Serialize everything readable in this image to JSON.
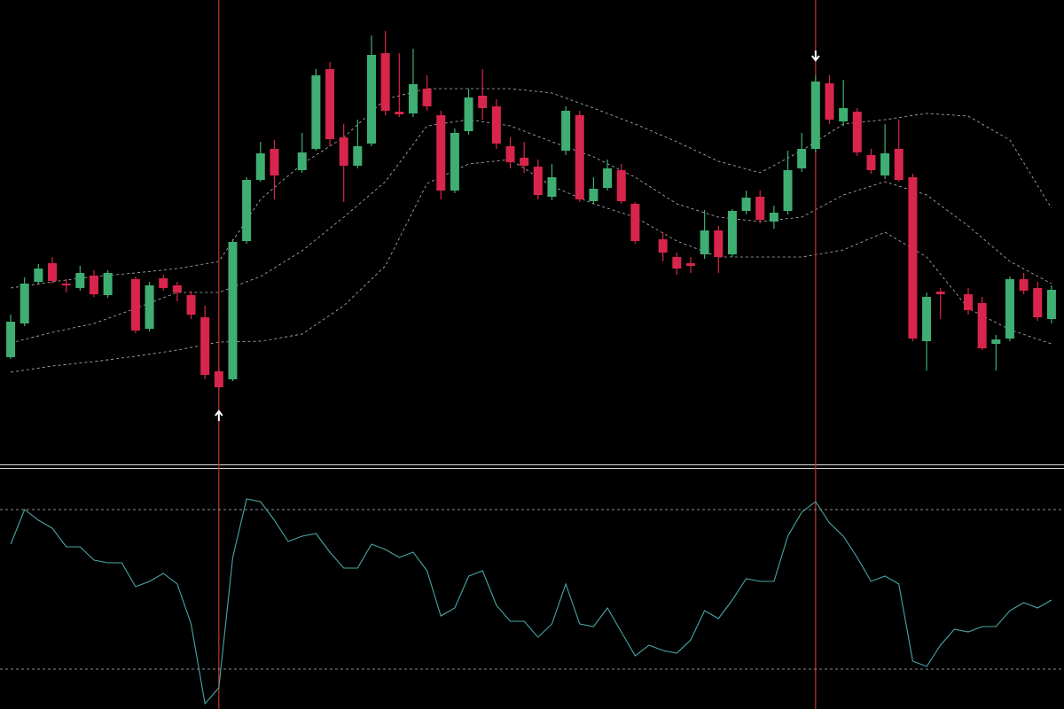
{
  "chart_data": [
    {
      "type": "candlestick",
      "up_color": "#3fae72",
      "down_color": "#d8254c",
      "xlim": [
        -0.77,
        75.9
      ],
      "ylim": [
        0,
        520
      ],
      "x": [
        0,
        1,
        2,
        3,
        4,
        5,
        6,
        7,
        8,
        9,
        10,
        11,
        12,
        13,
        14,
        15,
        16,
        17,
        18,
        19,
        20,
        21,
        22,
        23,
        24,
        25,
        26,
        27,
        28,
        29,
        30,
        31,
        32,
        33,
        34,
        35,
        36,
        37,
        38,
        39,
        40,
        41,
        42,
        43,
        44,
        45,
        46,
        47,
        48,
        49,
        50,
        51,
        52,
        53,
        54,
        55,
        56,
        57,
        58,
        59,
        60,
        61,
        62,
        63,
        64,
        65,
        66,
        67,
        68,
        69,
        70,
        71,
        72,
        73,
        74,
        75
      ],
      "open": [
        117,
        155,
        202,
        223,
        200,
        195,
        209,
        187,
        null,
        205,
        149,
        206,
        198,
        187,
        162,
        101,
        92,
        248,
        317,
        352,
        null,
        328,
        352,
        442,
        365,
        333,
        358,
        460,
        394,
        392,
        420,
        390,
        305,
        372,
        412,
        400,
        355,
        342,
        332,
        298,
        350,
        390,
        293,
        308,
        328,
        290,
        null,
        250,
        230,
        223,
        233,
        260,
        233,
        282,
        298,
        270,
        282,
        330,
        352,
        426,
        383,
        394,
        345,
        322,
        352,
        320,
        135,
        191,
        null,
        188,
        178,
        132,
        138,
        205,
        195,
        160
      ],
      "high": [
        165,
        207,
        222,
        230,
        205,
        220,
        215,
        215,
        null,
        208,
        202,
        210,
        202,
        192,
        175,
        105,
        250,
        320,
        360,
        362,
        null,
        370,
        442,
        450,
        380,
        385,
        480,
        485,
        460,
        465,
        435,
        395,
        375,
        420,
        442,
        408,
        365,
        360,
        340,
        335,
        400,
        395,
        320,
        340,
        335,
        292,
        null,
        258,
        235,
        230,
        283,
        265,
        284,
        305,
        305,
        288,
        350,
        370,
        435,
        435,
        430,
        398,
        352,
        380,
        385,
        324,
        190,
        195,
        null,
        195,
        185,
        142,
        208,
        212,
        202,
        198
      ],
      "low": [
        115,
        152,
        200,
        200,
        190,
        192,
        185,
        184,
        null,
        144,
        146,
        192,
        180,
        160,
        92,
        80,
        90,
        245,
        315,
        295,
        null,
        325,
        350,
        355,
        292,
        330,
        355,
        390,
        388,
        388,
        395,
        295,
        302,
        368,
        385,
        352,
        330,
        325,
        295,
        294,
        345,
        292,
        290,
        305,
        290,
        245,
        null,
        225,
        210,
        212,
        228,
        212,
        230,
        278,
        268,
        262,
        278,
        326,
        348,
        380,
        378,
        344,
        324,
        318,
        315,
        135,
        102,
        160,
        null,
        165,
        125,
        102,
        135,
        188,
        158,
        155
      ],
      "close": [
        157,
        200,
        217,
        203,
        198,
        212,
        188,
        212,
        null,
        147,
        198,
        195,
        190,
        165,
        97,
        83,
        247,
        317,
        347,
        322,
        null,
        348,
        435,
        363,
        333,
        355,
        458,
        395,
        391,
        425,
        400,
        305,
        370,
        410,
        398,
        358,
        337,
        333,
        300,
        320,
        395,
        295,
        307,
        330,
        293,
        248,
        null,
        235,
        217,
        220,
        260,
        230,
        282,
        297,
        272,
        280,
        328,
        352,
        428,
        385,
        398,
        348,
        328,
        347,
        317,
        138,
        185,
        188,
        null,
        170,
        127,
        137,
        205,
        192,
        162,
        193
      ],
      "bands": {
        "color": "#b8b8b8",
        "x": [
          0,
          3,
          6,
          9,
          12,
          15,
          18,
          21,
          24,
          27,
          30,
          33,
          36,
          39,
          42,
          45,
          48,
          51,
          54,
          57,
          60,
          63,
          66,
          69,
          72,
          75
        ],
        "series": [
          {
            "values": [
              195,
              202,
              208,
              212,
              217,
              225,
              295,
              335,
              365,
              408,
              420,
              420,
              420,
              415,
              398,
              380,
              360,
              338,
              325,
              350,
              380,
              385,
              392,
              389,
              362,
              285
            ]
          },
          {
            "values": [
              133,
              145,
              155,
              172,
              190,
              190,
              208,
              237,
              275,
              315,
              378,
              385,
              378,
              360,
              343,
              320,
              290,
              275,
              270,
              275,
              300,
              315,
              300,
              265,
              225,
              200
            ]
          },
          {
            "values": [
              100,
              107,
              112,
              118,
              125,
              134,
              135,
              143,
              175,
              220,
              313,
              335,
              340,
              310,
              290,
              275,
              248,
              230,
              230,
              230,
              238,
              258,
              230,
              172,
              148,
              132
            ]
          }
        ]
      },
      "signals": [
        {
          "x": 15,
          "direction": "up"
        },
        {
          "x": 58,
          "direction": "down"
        }
      ],
      "signal_color": "#c0392b"
    },
    {
      "type": "line",
      "color": "#4aa6a6",
      "xlim": [
        -0.77,
        75.9
      ],
      "ylim": [
        5,
        95
      ],
      "levels": [
        80,
        20
      ],
      "x": [
        0,
        1,
        2,
        3,
        4,
        5,
        6,
        7,
        8,
        9,
        10,
        11,
        12,
        13,
        14,
        15,
        16,
        17,
        18,
        19,
        20,
        21,
        22,
        23,
        24,
        25,
        26,
        27,
        28,
        29,
        30,
        31,
        32,
        33,
        34,
        35,
        36,
        37,
        38,
        39,
        40,
        41,
        42,
        43,
        44,
        45,
        46,
        47,
        48,
        49,
        50,
        51,
        52,
        53,
        54,
        55,
        56,
        57,
        58,
        59,
        60,
        61,
        62,
        63,
        64,
        65,
        66,
        67,
        68,
        69,
        70,
        71,
        72,
        73,
        74,
        75
      ],
      "values": [
        67,
        80,
        76,
        73,
        66,
        66,
        61,
        60,
        60,
        51,
        53,
        56,
        52,
        37,
        7,
        13,
        62,
        84,
        83,
        76,
        68,
        70,
        71,
        64,
        58,
        58,
        67,
        65,
        62,
        64,
        57,
        40,
        43,
        55,
        57,
        44,
        38,
        38,
        32,
        37,
        52,
        37,
        36,
        43,
        34,
        25,
        29,
        27,
        26,
        31,
        42,
        39,
        46,
        54,
        53,
        53,
        70,
        79,
        83,
        75,
        70,
        62,
        53,
        55,
        52,
        23,
        21,
        29,
        35,
        34,
        36,
        36,
        42,
        45,
        43,
        46
      ]
    }
  ]
}
